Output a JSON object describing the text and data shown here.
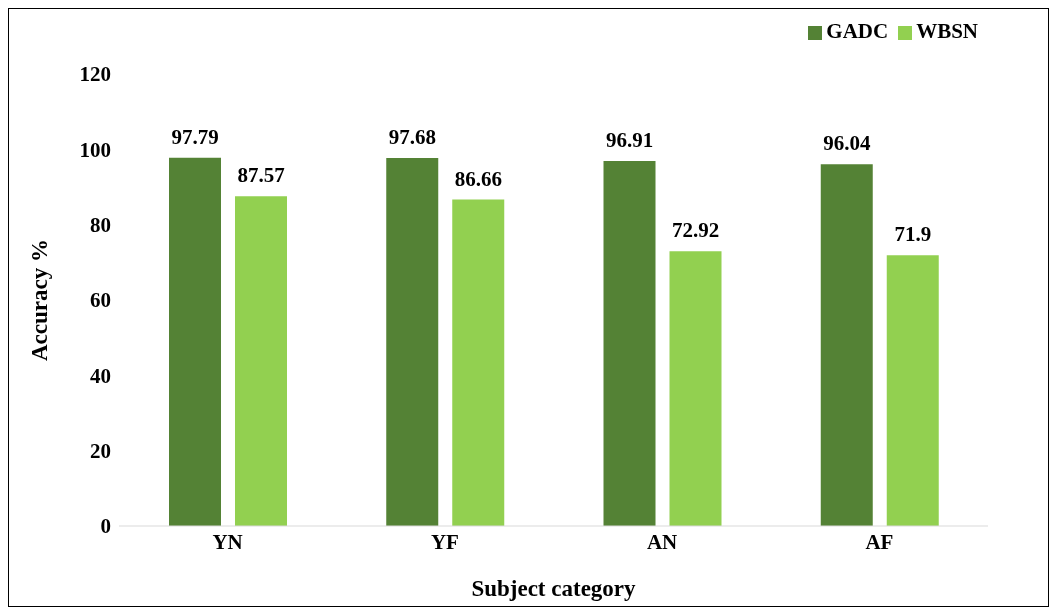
{
  "chart_data": {
    "type": "bar",
    "xlabel": "Subject category",
    "ylabel": "Accuracy %",
    "categories": [
      "YN",
      "YF",
      "AN",
      "AF"
    ],
    "series": [
      {
        "name": "GADC",
        "color": "#548235",
        "values": [
          97.79,
          97.68,
          96.91,
          96.04
        ]
      },
      {
        "name": "WBSN",
        "color": "#92d050",
        "values": [
          87.57,
          86.66,
          72.92,
          71.9
        ]
      }
    ],
    "ylim": [
      0,
      120
    ],
    "yticks": [
      0,
      20,
      40,
      60,
      80,
      100,
      120
    ],
    "data_labels": true,
    "legend": "top right"
  }
}
